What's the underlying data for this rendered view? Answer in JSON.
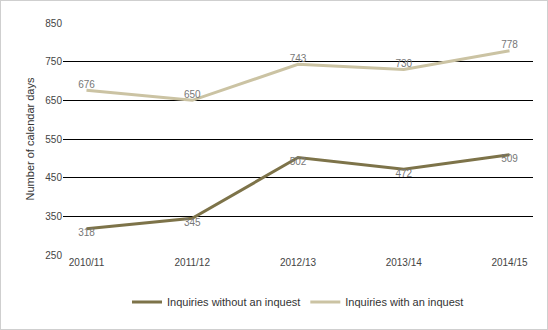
{
  "chart_data": {
    "type": "line",
    "categories": [
      "2010/11",
      "2011/12",
      "2012/13",
      "2013/14",
      "2014/15"
    ],
    "series": [
      {
        "name": "Inquiries without an inquest",
        "color": "#7d7349",
        "values": [
          318,
          345,
          502,
          472,
          509
        ]
      },
      {
        "name": "Inquiries with an inquest",
        "color": "#cbc3a3",
        "values": [
          676,
          650,
          743,
          730,
          778
        ]
      }
    ],
    "y_label": "Number of calendar days",
    "ylim": [
      250,
      850
    ],
    "yticks": [
      250,
      350,
      450,
      550,
      650,
      750,
      850
    ],
    "grid": true,
    "legend": "bottom",
    "data_labels": true
  }
}
